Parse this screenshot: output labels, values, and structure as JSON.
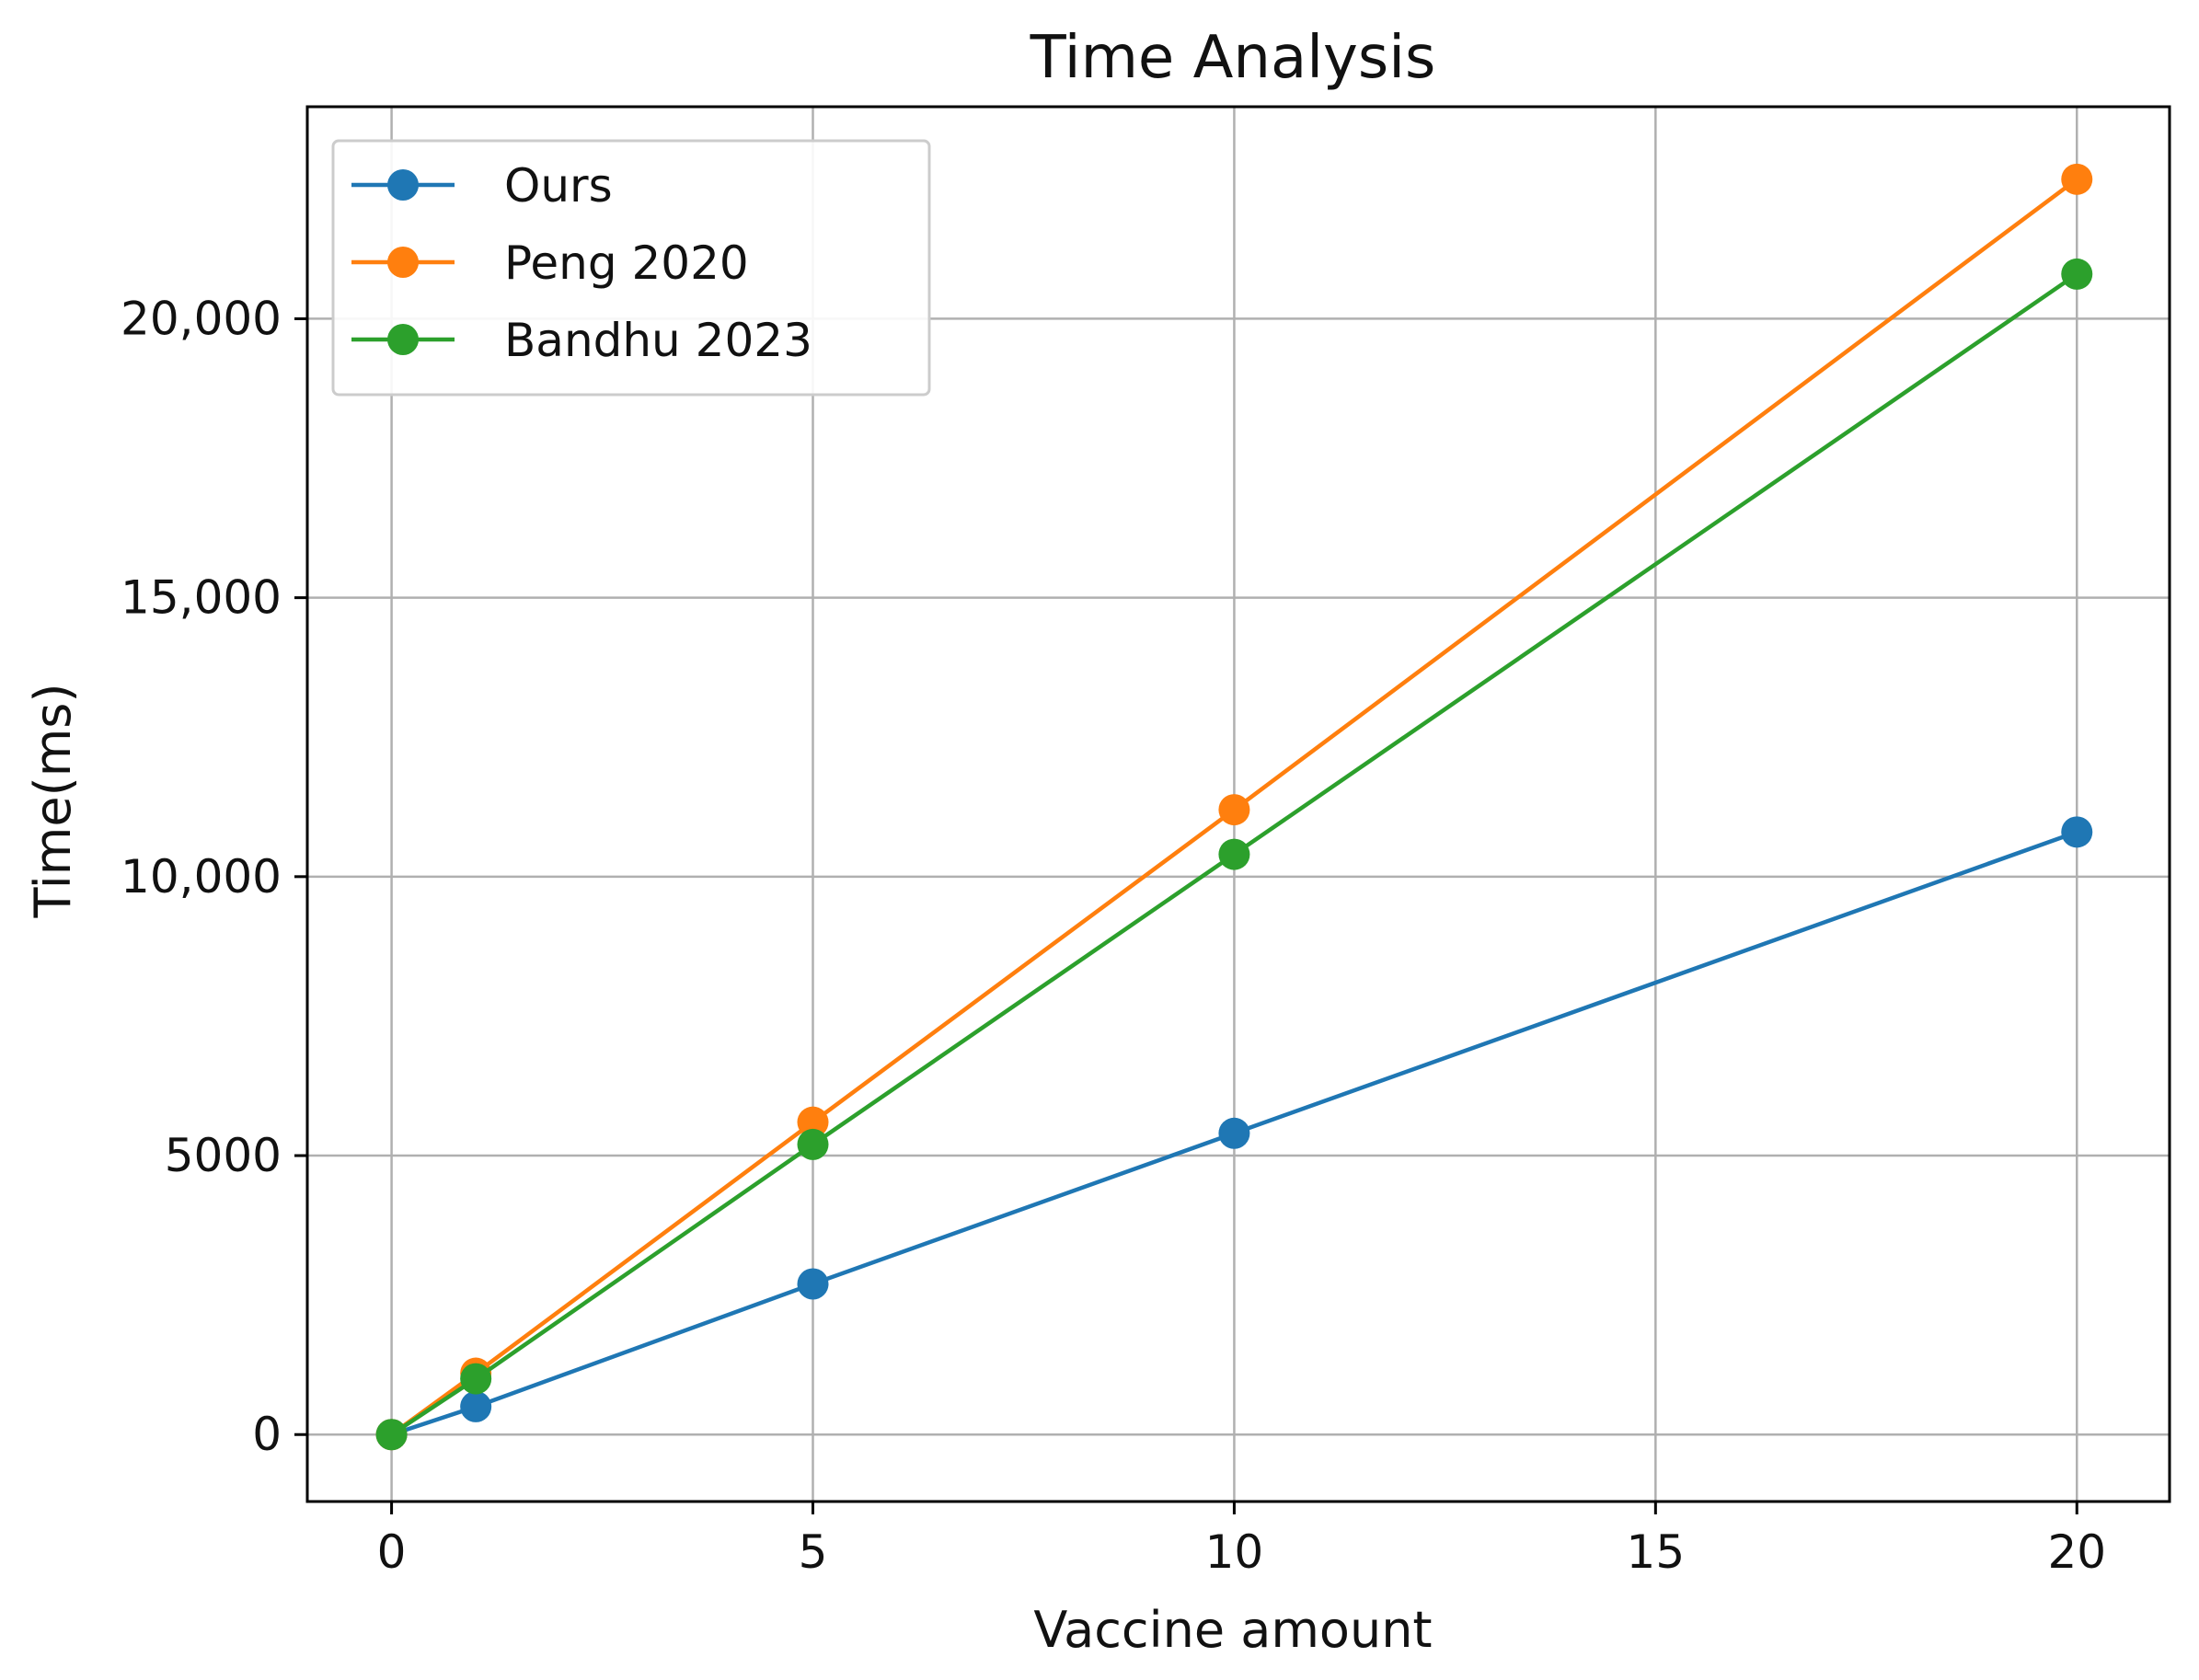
{
  "chart_data": {
    "type": "line",
    "title": "Time Analysis",
    "xlabel": "Vaccine amount",
    "ylabel": "Time(ms)",
    "x": [
      0,
      1,
      5,
      10,
      20
    ],
    "xlim": [
      -1,
      21.1
    ],
    "ylim": [
      -1200,
      23800
    ],
    "xticks": [
      0,
      5,
      10,
      15,
      20
    ],
    "xtick_labels": [
      "0",
      "5",
      "10",
      "15",
      "20"
    ],
    "yticks": [
      0,
      5000,
      10000,
      15000,
      20000
    ],
    "ytick_labels": [
      "0",
      "5000",
      "10,000",
      "15,000",
      "20,000"
    ],
    "grid": true,
    "legend_position": "upper-left",
    "series": [
      {
        "name": "Ours",
        "color": "#1f77b4",
        "values": [
          0,
          500,
          2700,
          5400,
          10800
        ]
      },
      {
        "name": "Peng 2020",
        "color": "#ff7f0e",
        "values": [
          0,
          1100,
          5600,
          11200,
          22500
        ]
      },
      {
        "name": "Bandhu 2023",
        "color": "#2ca02c",
        "values": [
          0,
          1000,
          5200,
          10400,
          20800
        ]
      }
    ]
  }
}
